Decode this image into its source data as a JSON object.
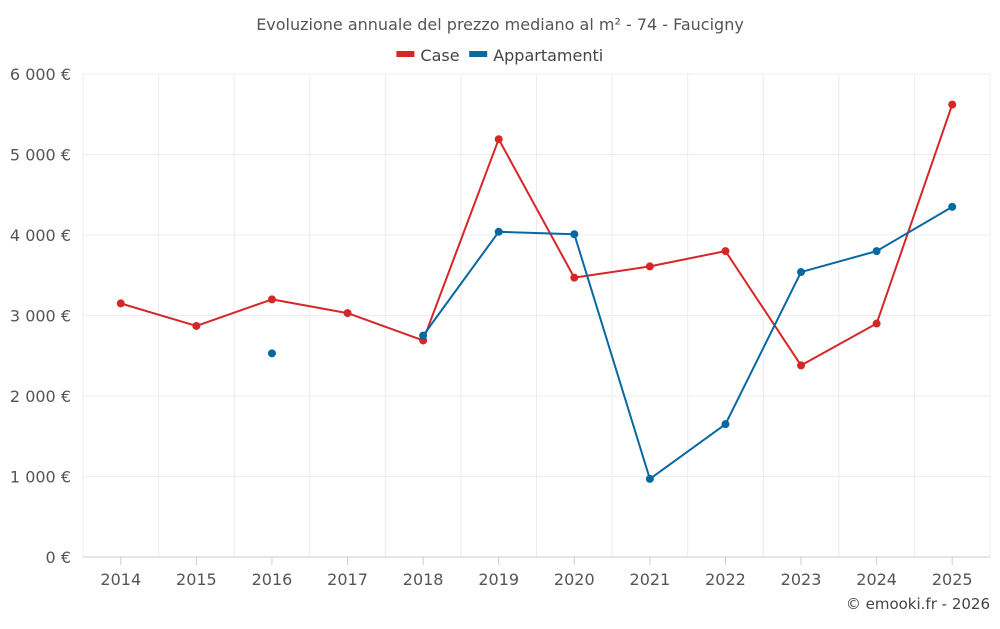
{
  "chart_data": {
    "type": "line",
    "title": "Evoluzione annuale del prezzo mediano al m² - 74 - Faucigny",
    "credit": "© emooki.fr - 2026",
    "categories": [
      "2014",
      "2015",
      "2016",
      "2017",
      "2018",
      "2019",
      "2020",
      "2021",
      "2022",
      "2023",
      "2024",
      "2025"
    ],
    "y_ticks": [
      {
        "value": 0,
        "label": "0 €"
      },
      {
        "value": 1000,
        "label": "1 000 €"
      },
      {
        "value": 2000,
        "label": "2 000 €"
      },
      {
        "value": 3000,
        "label": "3 000 €"
      },
      {
        "value": 4000,
        "label": "4 000 €"
      },
      {
        "value": 5000,
        "label": "5 000 €"
      },
      {
        "value": 6000,
        "label": "6 000 €"
      }
    ],
    "ylim": [
      0,
      6000
    ],
    "grid": true,
    "legend_position": "top-center",
    "series": [
      {
        "name": "Case",
        "color": "#d62728",
        "values": [
          3150,
          2870,
          3200,
          3030,
          2690,
          5190,
          3470,
          3610,
          3800,
          2380,
          2900,
          5620
        ]
      },
      {
        "name": "Appartamenti",
        "color": "#0868a0",
        "values": [
          null,
          null,
          2530,
          null,
          2750,
          4040,
          4010,
          970,
          1650,
          3540,
          3800,
          4350
        ]
      }
    ]
  }
}
